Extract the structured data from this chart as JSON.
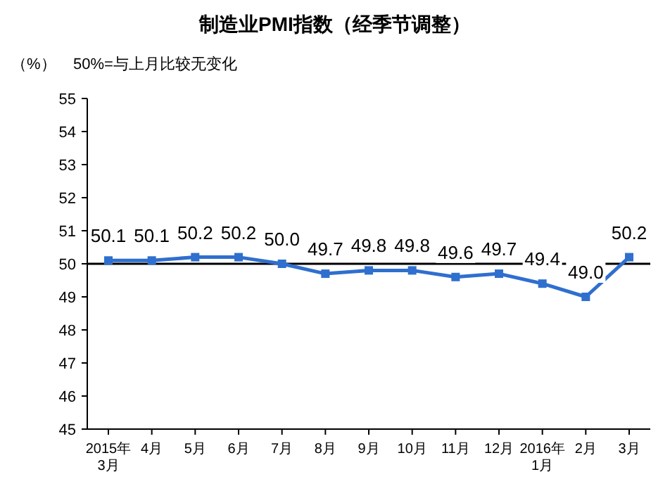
{
  "chart_data": {
    "type": "line",
    "title": "制造业PMI指数（经季节调整）",
    "ylabel": "（%）",
    "annotations": [
      "50%=与上月比较无变化"
    ],
    "categories": [
      "2015年\n3月",
      "4月",
      "5月",
      "6月",
      "7月",
      "8月",
      "9月",
      "10月",
      "11月",
      "12月",
      "2016年\n1月",
      "2月",
      "3月"
    ],
    "series": [
      {
        "color": "#2f6fce",
        "values": [
          50.1,
          50.1,
          50.2,
          50.2,
          50.0,
          49.7,
          49.8,
          49.8,
          49.6,
          49.7,
          49.4,
          49.0,
          50.2
        ],
        "value_labels": [
          "50.1",
          "50.1",
          "50.2",
          "50.2",
          "50.0",
          "49.7",
          "49.8",
          "49.8",
          "49.6",
          "49.7",
          "49.4",
          "49.0",
          "50.2"
        ]
      }
    ],
    "ylim": [
      45,
      55
    ],
    "yticks": [
      45,
      46,
      47,
      48,
      49,
      50,
      51,
      52,
      53,
      54,
      55
    ],
    "ref_lines": [
      {
        "axis": "y",
        "value": 50,
        "color": "#000000"
      }
    ],
    "marker": "square",
    "grid": false
  }
}
